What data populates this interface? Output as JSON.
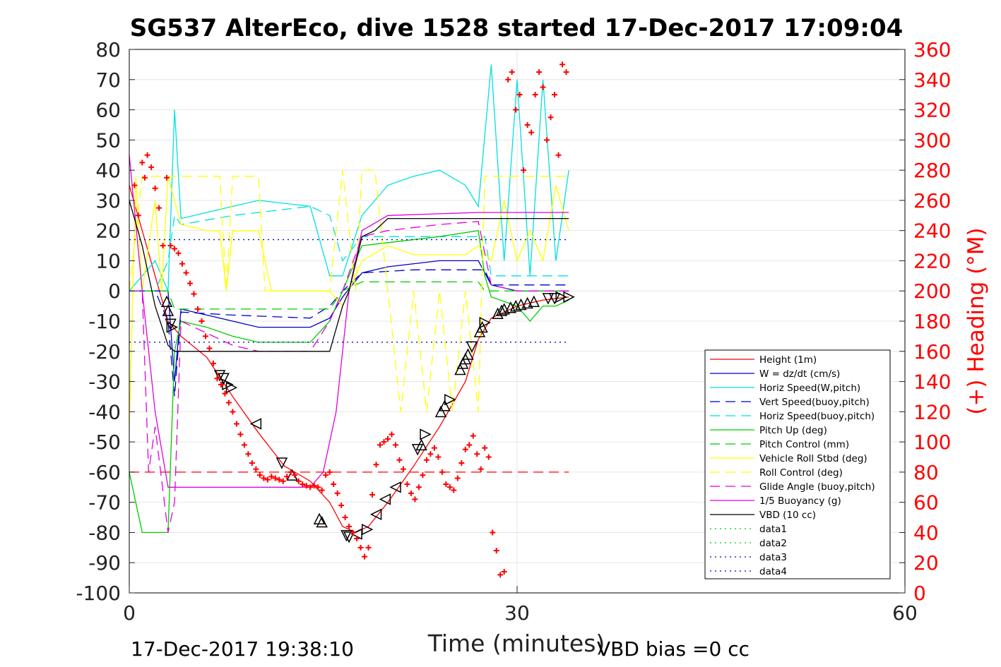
{
  "chart_data": {
    "type": "line",
    "title": "SG537 AlterEco, dive 1528 started 17-Dec-2017 17:09:04",
    "xlabel": "Time (minutes)",
    "ylabel_right": "(+) Heading (°M)",
    "footer_left": "17-Dec-2017 19:38:10",
    "footer_right": "VBD bias =0 cc",
    "xlim": [
      0,
      60
    ],
    "ylim_left": [
      -100,
      80
    ],
    "ylim_right": [
      0,
      360
    ],
    "x_ticks": [
      "0",
      "30",
      "60"
    ],
    "y_ticks_left": [
      "80",
      "70",
      "60",
      "50",
      "40",
      "30",
      "20",
      "10",
      "0",
      "-10",
      "-20",
      "-30",
      "-40",
      "-50",
      "-60",
      "-70",
      "-80",
      "-90",
      "-100"
    ],
    "y_ticks_right": [
      "360",
      "340",
      "320",
      "300",
      "280",
      "260",
      "240",
      "220",
      "200",
      "180",
      "160",
      "140",
      "120",
      "100",
      "80",
      "60",
      "40",
      "20",
      "0"
    ],
    "grid": true,
    "legend_position": "lower-right",
    "colors": {
      "height": "#ff0000",
      "w": "#0000c8",
      "horiz_speed_w": "#00e0e0",
      "vert_speed_buoy": "#0000c8",
      "horiz_speed_buoy": "#00e0e0",
      "pitch_up": "#00cc00",
      "pitch_control": "#00cc00",
      "roll": "#ffff00",
      "roll_control": "#ffff00",
      "glide_angle": "#e000e0",
      "buoyancy": "#e000e0",
      "vbd": "#000000",
      "heading": "#ff0000",
      "right_axis": "#ff0000"
    },
    "legend": [
      {
        "label": "Height (1m)",
        "color": "#ff0000",
        "style": "solid"
      },
      {
        "label": "W = dz/dt (cm/s)",
        "color": "#0000c8",
        "style": "solid"
      },
      {
        "label": "Horiz Speed(W,pitch)",
        "color": "#00e0e0",
        "style": "solid"
      },
      {
        "label": "Vert Speed(buoy,pitch)",
        "color": "#0000c8",
        "style": "dashed"
      },
      {
        "label": "Horiz Speed(buoy,pitch)",
        "color": "#00e0e0",
        "style": "dashed"
      },
      {
        "label": "Pitch Up (deg)",
        "color": "#00cc00",
        "style": "solid"
      },
      {
        "label": "Pitch Control (mm)",
        "color": "#00cc00",
        "style": "dashed"
      },
      {
        "label": "Vehicle Roll Stbd (deg)",
        "color": "#ffff00",
        "style": "solid"
      },
      {
        "label": "Roll Control (deg)",
        "color": "#ffff00",
        "style": "dashed"
      },
      {
        "label": "Glide Angle (buoy,pitch)",
        "color": "#e000e0",
        "style": "dashed"
      },
      {
        "label": "1/5 Buoyancy (g)",
        "color": "#e000e0",
        "style": "solid"
      },
      {
        "label": "VBD (10 cc)",
        "color": "#000000",
        "style": "solid"
      },
      {
        "label": "data1",
        "color": "#00cc00",
        "style": "dotted"
      },
      {
        "label": "data2",
        "color": "#00cc00",
        "style": "dotted"
      },
      {
        "label": "data3",
        "color": "#0000c8",
        "style": "dotted"
      },
      {
        "label": "data4",
        "color": "#0000c8",
        "style": "dotted"
      }
    ],
    "series": [
      {
        "name": "Height (1m)",
        "x": [
          0,
          1,
          2,
          3,
          4,
          6,
          8,
          10,
          12,
          14,
          15.5,
          16.5,
          17.5,
          18.5,
          20,
          22,
          24,
          26,
          27,
          28,
          30,
          32,
          34
        ],
        "values": [
          35,
          20,
          5,
          -10,
          -15,
          -22,
          -35,
          -47,
          -58,
          -63,
          -70,
          -78,
          -80,
          -78,
          -70,
          -58,
          -45,
          -30,
          -16,
          -9,
          -5,
          -3,
          -2
        ]
      },
      {
        "name": "W = dz/dt (cm/s)",
        "x": [
          0,
          2,
          3,
          3.5,
          4,
          6,
          8,
          10,
          14,
          15.5,
          16.5,
          18,
          20,
          24,
          27,
          28,
          30,
          34
        ],
        "values": [
          0,
          0,
          0,
          -30,
          -6,
          -8,
          -10,
          -12,
          -12,
          -9,
          -2,
          6,
          8,
          10,
          10,
          2,
          0,
          0
        ]
      },
      {
        "name": "Horiz Speed(W,pitch)",
        "x": [
          0,
          1,
          2,
          3,
          3.5,
          4,
          6,
          8,
          10,
          14,
          15.5,
          16.5,
          18,
          20,
          22,
          24,
          26,
          27,
          28,
          29,
          30,
          31,
          32,
          33,
          34
        ],
        "values": [
          0,
          5,
          10,
          0,
          60,
          24,
          26,
          28,
          30,
          28,
          5,
          5,
          25,
          35,
          38,
          40,
          35,
          28,
          75,
          10,
          70,
          5,
          70,
          10,
          40
        ]
      },
      {
        "name": "Vert Speed(buoy,pitch)",
        "x": [
          0,
          2,
          3,
          3.5,
          4,
          8,
          14,
          15.5,
          16.5,
          18,
          22,
          26,
          27.5,
          28,
          34
        ],
        "values": [
          0,
          0,
          -10,
          -35,
          -7,
          -8,
          -9,
          -5,
          0,
          6,
          7,
          7,
          7,
          2,
          2
        ]
      },
      {
        "name": "Horiz Speed(buoy,pitch)",
        "x": [
          0,
          2,
          3,
          3.5,
          4,
          8,
          14,
          15.5,
          16.5,
          18,
          22,
          26,
          27.5,
          28,
          34
        ],
        "values": [
          0,
          0,
          10,
          25,
          22,
          25,
          28,
          25,
          10,
          18,
          18,
          18,
          18,
          5,
          5
        ]
      },
      {
        "name": "Pitch Up (deg)",
        "x": [
          0,
          0.5,
          1,
          2,
          3,
          3.5,
          4,
          6,
          8,
          10,
          14,
          15.5,
          16.5,
          18,
          20,
          24,
          27,
          27.5,
          28,
          30,
          31,
          32,
          33,
          34
        ],
        "values": [
          -60,
          -70,
          -80,
          -80,
          -80,
          -20,
          -10,
          -12,
          -15,
          -17,
          -17,
          -10,
          0,
          15,
          16,
          18,
          20,
          5,
          -2,
          -5,
          -10,
          -5,
          -5,
          -3
        ]
      },
      {
        "name": "Pitch Control (mm)",
        "x": [
          0,
          3,
          3.5,
          14,
          15.5,
          16.5,
          18,
          27,
          27.5,
          34
        ],
        "values": [
          0,
          0,
          -6,
          -6,
          -6,
          0,
          3,
          3,
          0,
          0
        ]
      },
      {
        "name": "Vehicle Roll Stbd (deg)",
        "x": [
          0,
          0.5,
          1,
          2,
          2.5,
          3,
          4,
          6,
          7,
          7.5,
          8,
          9,
          10,
          11,
          12,
          14,
          15.5,
          16.5,
          18,
          20,
          22,
          24,
          26,
          27,
          28,
          29,
          30,
          31,
          32,
          33,
          34
        ],
        "values": [
          -45,
          38,
          0,
          30,
          0,
          38,
          22,
          20,
          20,
          0,
          20,
          20,
          20,
          0,
          0,
          0,
          0,
          -5,
          10,
          15,
          12,
          12,
          12,
          15,
          10,
          30,
          10,
          20,
          10,
          35,
          20
        ]
      },
      {
        "name": "Roll Control (deg)",
        "x": [
          0,
          1,
          2,
          3,
          7,
          7.5,
          8,
          10,
          10.5,
          14,
          15.5,
          16.5,
          17.5,
          18,
          19,
          20,
          21,
          22,
          23,
          24,
          25,
          26,
          27,
          27.5,
          28,
          34
        ],
        "values": [
          0,
          38,
          38,
          38,
          38,
          0,
          38,
          38,
          0,
          0,
          0,
          40,
          0,
          40,
          40,
          0,
          -40,
          0,
          -40,
          0,
          -40,
          0,
          -40,
          38,
          38,
          38
        ]
      },
      {
        "name": "Glide Angle (buoy,pitch)",
        "x": [
          0,
          1,
          1.5,
          2,
          3,
          3.5,
          4,
          6,
          8,
          10,
          14,
          15.5,
          16.5,
          18,
          20,
          24,
          27,
          28,
          30,
          34
        ],
        "values": [
          0,
          0,
          -60,
          -45,
          -80,
          -70,
          -10,
          -14,
          -18,
          -20,
          -20,
          -10,
          0,
          18,
          20,
          22,
          23,
          2,
          0,
          0
        ]
      },
      {
        "name": "1/5 Buoyancy (g)",
        "x": [
          0,
          1,
          2,
          3,
          3.5,
          14,
          15,
          16,
          17,
          18,
          20,
          27,
          34
        ],
        "values": [
          45,
          0,
          -40,
          -65,
          -65,
          -65,
          -60,
          -40,
          0,
          20,
          25,
          26,
          26
        ]
      },
      {
        "name": "VBD (10 cc)",
        "x": [
          0,
          1,
          2,
          3,
          3.5,
          14.5,
          15.5,
          16.5,
          17,
          18,
          19,
          20,
          34
        ],
        "values": [
          30,
          15,
          -5,
          -18,
          -20,
          -20,
          -20,
          -5,
          0,
          18,
          20,
          24,
          24
        ]
      },
      {
        "name": "data1",
        "x": [
          0,
          34
        ],
        "values": [
          17,
          17
        ]
      },
      {
        "name": "data2",
        "x": [
          0,
          34
        ],
        "values": [
          -17,
          -17
        ]
      },
      {
        "name": "data3",
        "x": [
          0,
          34
        ],
        "values": [
          17,
          17
        ]
      },
      {
        "name": "data4",
        "x": [
          0,
          34
        ],
        "values": [
          -17,
          -17
        ]
      },
      {
        "name": "Roll reference",
        "x": [
          0,
          34
        ],
        "values": [
          -60,
          -60
        ]
      }
    ],
    "vbd_markers": [
      {
        "x": 2.9,
        "y": -3.5,
        "dir": "up"
      },
      {
        "x": 3.0,
        "y": -6.5,
        "dir": "up"
      },
      {
        "x": 3.2,
        "y": -11,
        "dir": "down"
      },
      {
        "x": 3.3,
        "y": -12,
        "dir": "right"
      },
      {
        "x": 7.0,
        "y": -28,
        "dir": "down"
      },
      {
        "x": 7.3,
        "y": -29,
        "dir": "down"
      },
      {
        "x": 7.6,
        "y": -31,
        "dir": "right"
      },
      {
        "x": 7.9,
        "y": -32,
        "dir": "right"
      },
      {
        "x": 9.8,
        "y": -44,
        "dir": "left"
      },
      {
        "x": 11.8,
        "y": -57,
        "dir": "down"
      },
      {
        "x": 12.6,
        "y": -61,
        "dir": "up"
      },
      {
        "x": 14.7,
        "y": -75.5,
        "dir": "up"
      },
      {
        "x": 14.9,
        "y": -76.5,
        "dir": "up"
      },
      {
        "x": 16.8,
        "y": -81,
        "dir": "down"
      },
      {
        "x": 17.0,
        "y": -81.5,
        "dir": "down"
      },
      {
        "x": 17.6,
        "y": -80.5,
        "dir": "left"
      },
      {
        "x": 18.4,
        "y": -79,
        "dir": "right"
      },
      {
        "x": 19.1,
        "y": -74,
        "dir": "left"
      },
      {
        "x": 19.8,
        "y": -69,
        "dir": "left"
      },
      {
        "x": 20.6,
        "y": -65,
        "dir": "left"
      },
      {
        "x": 22.3,
        "y": -52.5,
        "dir": "down"
      },
      {
        "x": 22.6,
        "y": -51,
        "dir": "up"
      },
      {
        "x": 22.9,
        "y": -47.5,
        "dir": "right"
      },
      {
        "x": 24.1,
        "y": -40,
        "dir": "up"
      },
      {
        "x": 24.4,
        "y": -38,
        "dir": "up"
      },
      {
        "x": 24.8,
        "y": -36,
        "dir": "right"
      },
      {
        "x": 25.6,
        "y": -26,
        "dir": "up"
      },
      {
        "x": 25.8,
        "y": -24,
        "dir": "up"
      },
      {
        "x": 26.0,
        "y": -22.5,
        "dir": "up"
      },
      {
        "x": 26.2,
        "y": -21,
        "dir": "up"
      },
      {
        "x": 26.5,
        "y": -18.5,
        "dir": "down"
      },
      {
        "x": 27.1,
        "y": -13.5,
        "dir": "up"
      },
      {
        "x": 27.3,
        "y": -12,
        "dir": "up"
      },
      {
        "x": 27.5,
        "y": -10.5,
        "dir": "right"
      },
      {
        "x": 28.5,
        "y": -7.5,
        "dir": "up"
      },
      {
        "x": 28.8,
        "y": -6.5,
        "dir": "up"
      },
      {
        "x": 29.0,
        "y": -6,
        "dir": "up"
      },
      {
        "x": 29.5,
        "y": -5.5,
        "dir": "up"
      },
      {
        "x": 29.9,
        "y": -5,
        "dir": "up"
      },
      {
        "x": 30.3,
        "y": -4.5,
        "dir": "up"
      },
      {
        "x": 30.8,
        "y": -4,
        "dir": "up"
      },
      {
        "x": 31.3,
        "y": -3.5,
        "dir": "up"
      },
      {
        "x": 32.4,
        "y": -2.5,
        "dir": "down"
      },
      {
        "x": 32.9,
        "y": -2.5,
        "dir": "down"
      },
      {
        "x": 33.4,
        "y": -2,
        "dir": "right"
      },
      {
        "x": 34.0,
        "y": -2,
        "dir": "right"
      }
    ],
    "heading": {
      "x": [
        0.4,
        0.7,
        1.0,
        1.2,
        1.4,
        1.7,
        2.0,
        2.3,
        2.6,
        2.9,
        3.2,
        3.5,
        3.8,
        4.1,
        4.4,
        4.7,
        5.0,
        5.3,
        5.6,
        5.9,
        6.2,
        6.5,
        6.8,
        7.1,
        7.4,
        7.7,
        8.0,
        8.3,
        8.6,
        8.9,
        9.2,
        9.5,
        9.8,
        10.1,
        10.4,
        10.7,
        11.0,
        11.3,
        11.6,
        11.9,
        12.2,
        12.5,
        12.8,
        13.1,
        13.4,
        13.7,
        14.0,
        14.3,
        14.6,
        14.9,
        15.2,
        15.5,
        15.8,
        16.1,
        16.4,
        16.7,
        17.0,
        17.3,
        17.6,
        17.9,
        18.2,
        18.5,
        18.8,
        19.1,
        19.4,
        19.7,
        20.0,
        20.3,
        20.6,
        20.9,
        21.2,
        21.5,
        21.8,
        22.1,
        22.4,
        22.7,
        23.0,
        23.3,
        23.6,
        23.9,
        24.2,
        24.5,
        24.8,
        25.1,
        25.4,
        25.7,
        26.0,
        26.3,
        26.6,
        26.9,
        27.2,
        27.5,
        27.8,
        28.1,
        28.4,
        28.7,
        29.0,
        29.3,
        29.6,
        29.9,
        30.2,
        30.5,
        30.8,
        31.1,
        31.4,
        31.7,
        32.0,
        32.3,
        32.6,
        32.9,
        33.2,
        33.5,
        33.8
      ],
      "values": [
        270,
        250,
        285,
        275,
        290,
        282,
        268,
        255,
        230,
        275,
        230,
        228,
        225,
        218,
        212,
        205,
        198,
        188,
        180,
        170,
        162,
        152,
        142,
        138,
        132,
        126,
        120,
        112,
        105,
        98,
        92,
        86,
        82,
        78,
        76,
        75,
        77,
        76,
        75,
        74,
        77,
        80,
        78,
        74,
        72,
        71,
        70,
        71,
        70,
        68,
        78,
        80,
        72,
        66,
        58,
        50,
        44,
        40,
        36,
        30,
        24,
        30,
        65,
        85,
        98,
        100,
        102,
        105,
        98,
        88,
        82,
        72,
        66,
        62,
        70,
        78,
        88,
        92,
        96,
        90,
        80,
        72,
        70,
        68,
        76,
        86,
        95,
        98,
        104,
        92,
        82,
        96,
        90,
        40,
        28,
        12,
        14,
        340,
        345,
        320,
        330,
        280,
        310,
        305,
        330,
        345,
        335,
        300,
        315,
        330,
        290,
        350,
        345
      ]
    }
  }
}
